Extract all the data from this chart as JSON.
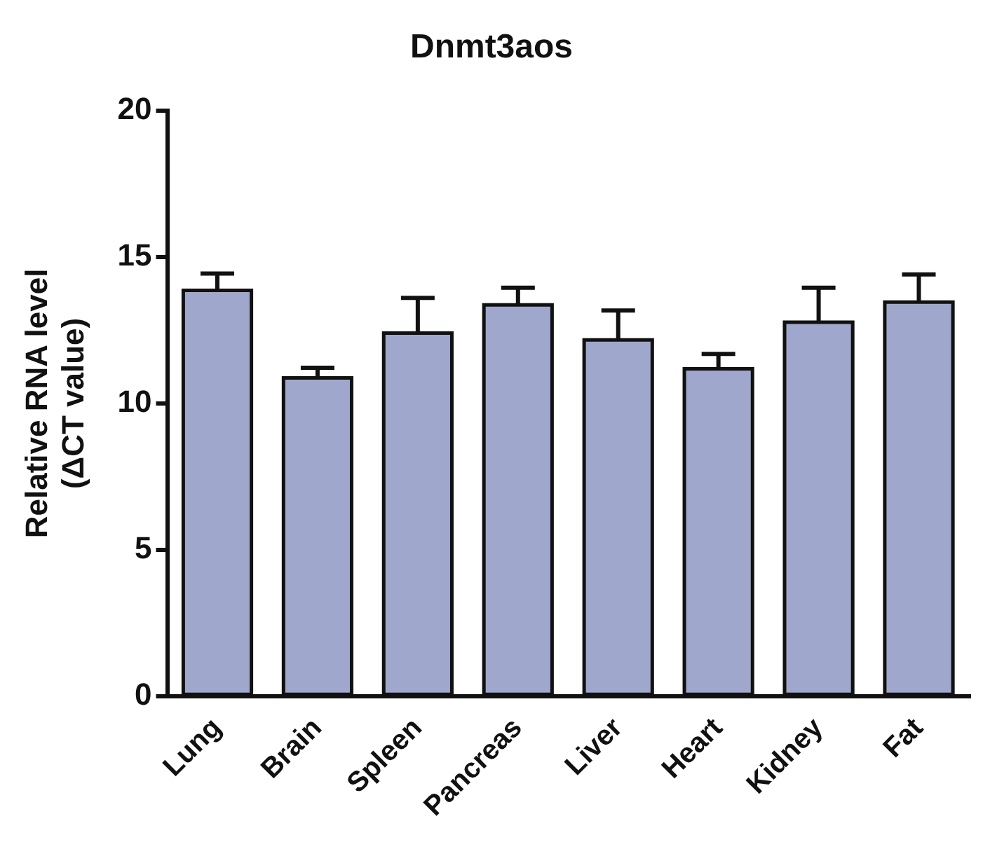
{
  "chart_data": {
    "type": "bar",
    "title": "Dnmt3aos",
    "ylabel": "Relative RNA level\n(ΔCT value)",
    "categories": [
      "Lung",
      "Brain",
      "Spleen",
      "Pancreas",
      "Liver",
      "Heart",
      "Kidney",
      "Fat"
    ],
    "values": [
      13.86,
      10.87,
      12.4,
      13.36,
      12.17,
      11.18,
      12.77,
      13.46
    ],
    "errors": [
      [
        13.86,
        14.43
      ],
      [
        10.87,
        11.22
      ],
      [
        12.4,
        13.6
      ],
      [
        13.36,
        13.95
      ],
      [
        12.17,
        13.17
      ],
      [
        11.18,
        11.69
      ],
      [
        12.77,
        13.95
      ],
      [
        13.46,
        14.4
      ]
    ],
    "color": "#9fa8cc",
    "ylim": [
      0,
      20
    ],
    "yticks": [
      0,
      5,
      10,
      15,
      20
    ],
    "grid": false,
    "legend": false
  }
}
